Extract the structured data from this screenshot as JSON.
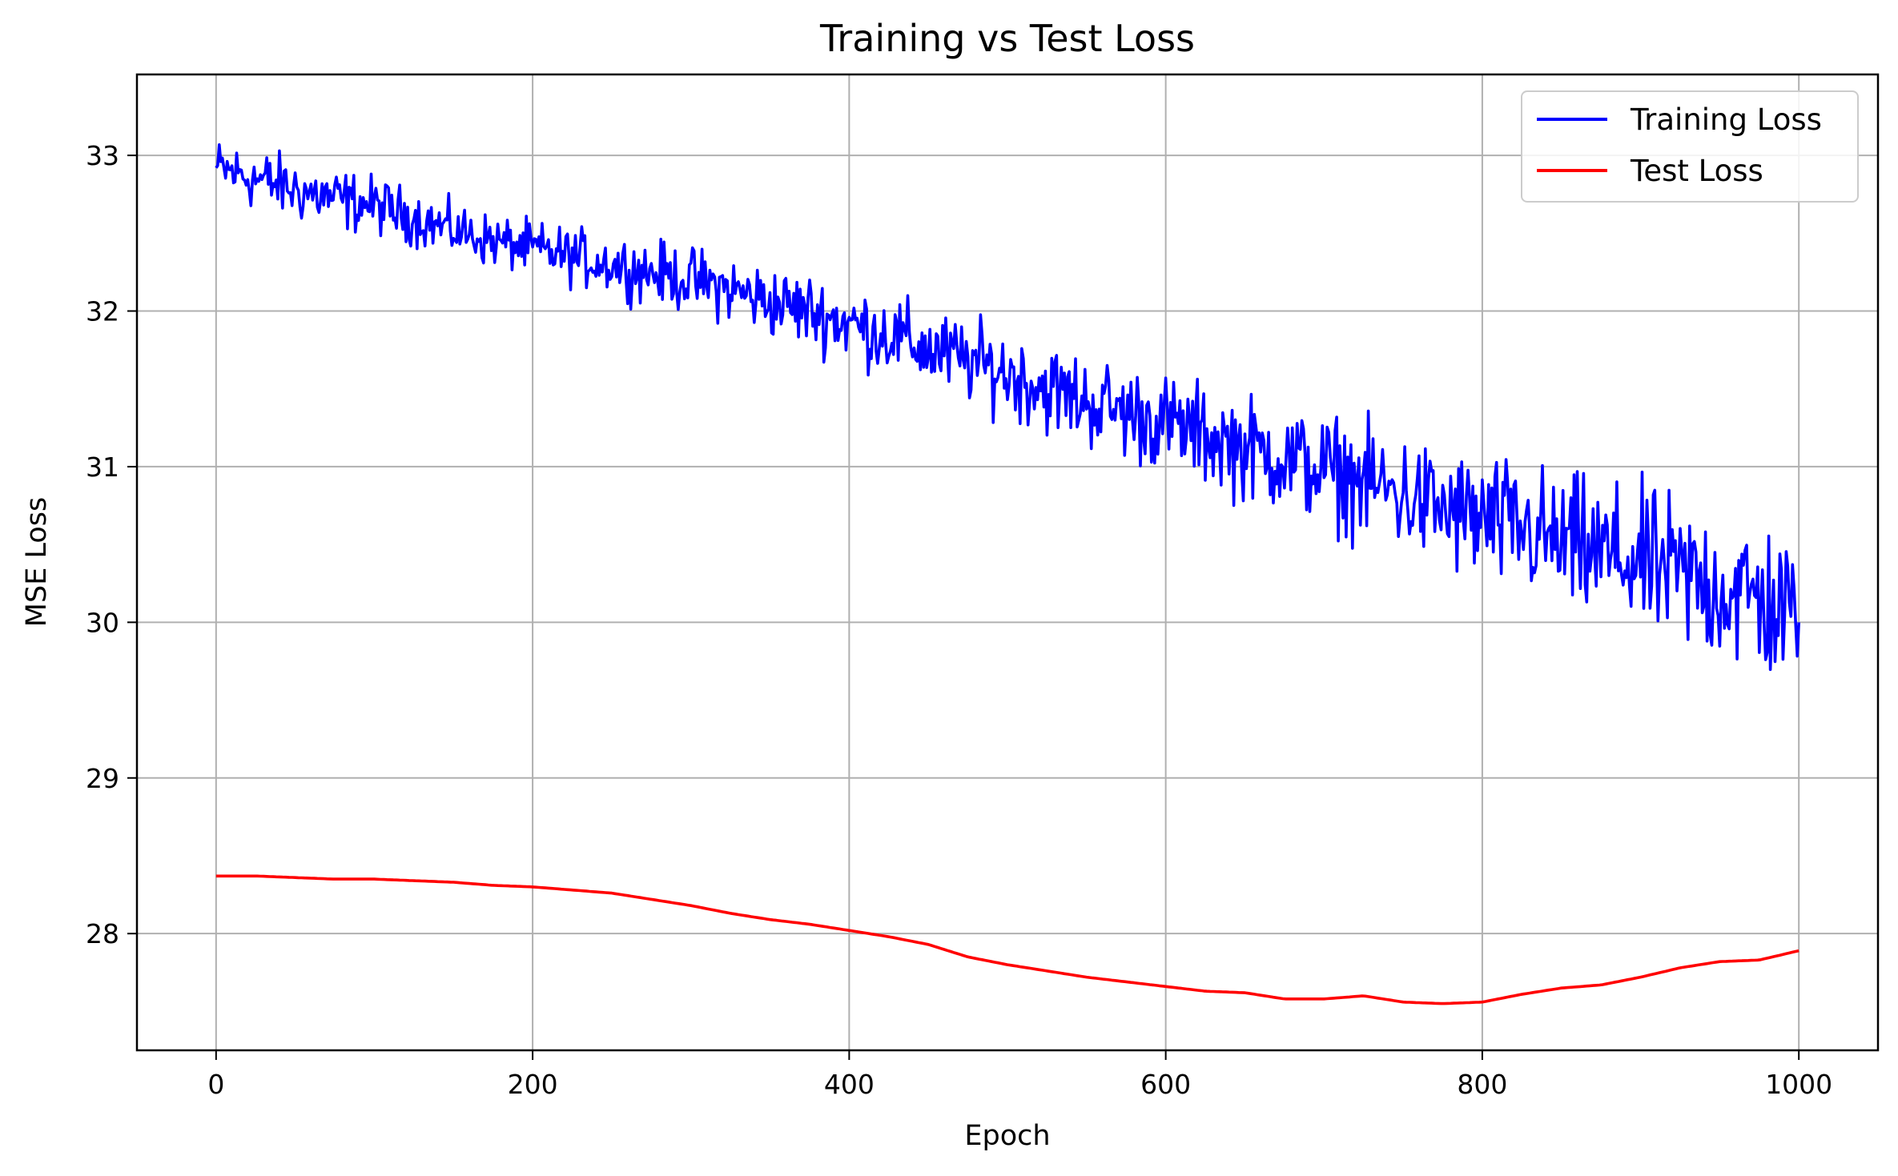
{
  "chart_data": {
    "type": "line",
    "title": "Training vs Test Loss",
    "xlabel": "Epoch",
    "ylabel": "MSE Loss",
    "xlim": [
      -50,
      1050
    ],
    "ylim": [
      27.25,
      33.52
    ],
    "xticks": [
      0,
      200,
      400,
      600,
      800,
      1000
    ],
    "yticks": [
      28,
      29,
      30,
      31,
      32,
      33
    ],
    "xtick_labels": [
      "0",
      "200",
      "400",
      "600",
      "800",
      "1000"
    ],
    "ytick_labels": [
      "28",
      "29",
      "30",
      "31",
      "32",
      "33"
    ],
    "grid": true,
    "legend_position": "top-right",
    "series": [
      {
        "name": "Training Loss",
        "color": "#0000ff",
        "x": [
          0,
          25,
          50,
          75,
          100,
          125,
          150,
          175,
          200,
          225,
          250,
          275,
          300,
          325,
          350,
          375,
          400,
          425,
          450,
          475,
          500,
          525,
          550,
          575,
          600,
          625,
          650,
          675,
          700,
          725,
          750,
          775,
          800,
          825,
          850,
          875,
          900,
          925,
          950,
          975,
          1000
        ],
        "y": [
          32.92,
          32.85,
          32.78,
          32.72,
          32.68,
          32.6,
          32.52,
          32.45,
          32.4,
          32.35,
          32.3,
          32.25,
          32.2,
          32.14,
          32.06,
          32.0,
          31.92,
          31.85,
          31.75,
          31.68,
          31.6,
          31.5,
          31.42,
          31.35,
          31.28,
          31.2,
          31.12,
          31.05,
          30.98,
          30.9,
          30.82,
          30.72,
          30.65,
          30.6,
          30.5,
          30.44,
          30.38,
          30.3,
          30.22,
          30.15,
          30.0
        ],
        "noise": [
          0.3,
          0.33,
          0.33,
          0.32,
          0.3,
          0.28,
          0.28,
          0.27,
          0.28,
          0.3,
          0.3,
          0.32,
          0.34,
          0.35,
          0.37,
          0.38,
          0.4,
          0.42,
          0.42,
          0.43,
          0.45,
          0.47,
          0.48,
          0.5,
          0.5,
          0.52,
          0.55,
          0.55,
          0.58,
          0.6,
          0.62,
          0.65,
          0.68,
          0.7,
          0.72,
          0.75,
          0.78,
          0.8,
          0.82,
          0.85,
          0.85
        ]
      },
      {
        "name": "Test Loss",
        "color": "#ff0000",
        "x": [
          0,
          25,
          50,
          75,
          100,
          125,
          150,
          175,
          200,
          225,
          250,
          275,
          300,
          325,
          350,
          375,
          400,
          425,
          450,
          475,
          500,
          525,
          550,
          575,
          600,
          625,
          650,
          675,
          700,
          725,
          750,
          775,
          800,
          825,
          850,
          875,
          900,
          925,
          950,
          975,
          1000
        ],
        "y": [
          28.37,
          28.37,
          28.36,
          28.35,
          28.35,
          28.34,
          28.33,
          28.31,
          28.3,
          28.28,
          28.26,
          28.22,
          28.18,
          28.13,
          28.09,
          28.06,
          28.02,
          27.98,
          27.93,
          27.85,
          27.8,
          27.76,
          27.72,
          27.69,
          27.66,
          27.63,
          27.62,
          27.58,
          27.58,
          27.6,
          27.56,
          27.55,
          27.56,
          27.61,
          27.65,
          27.67,
          27.72,
          27.78,
          27.82,
          27.83,
          27.89
        ]
      }
    ]
  }
}
